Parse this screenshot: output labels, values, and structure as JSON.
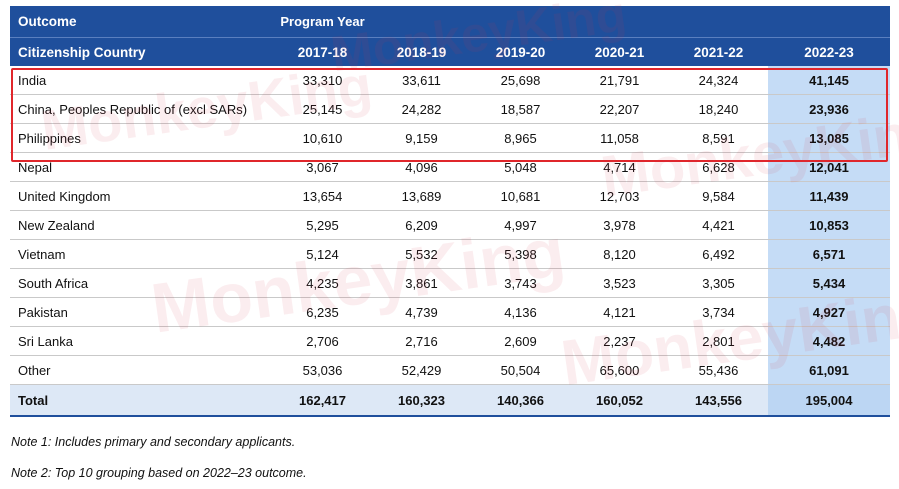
{
  "header": {
    "row1": {
      "outcome": "Outcome",
      "program_year": "Program Year"
    },
    "row2": {
      "citizenship": "Citizenship Country",
      "years": [
        "2017-18",
        "2018-19",
        "2019-20",
        "2020-21",
        "2021-22",
        "2022-23"
      ]
    }
  },
  "rows": [
    {
      "country": "India",
      "values": [
        "33,310",
        "33,611",
        "25,698",
        "21,791",
        "24,324",
        "41,145"
      ]
    },
    {
      "country": "China, Peoples Republic of (excl SARs)",
      "values": [
        "25,145",
        "24,282",
        "18,587",
        "22,207",
        "18,240",
        "23,936"
      ]
    },
    {
      "country": "Philippines",
      "values": [
        "10,610",
        "9,159",
        "8,965",
        "11,058",
        "8,591",
        "13,085"
      ]
    },
    {
      "country": "Nepal",
      "values": [
        "3,067",
        "4,096",
        "5,048",
        "4,714",
        "6,628",
        "12,041"
      ]
    },
    {
      "country": "United Kingdom",
      "values": [
        "13,654",
        "13,689",
        "10,681",
        "12,703",
        "9,584",
        "11,439"
      ]
    },
    {
      "country": "New Zealand",
      "values": [
        "5,295",
        "6,209",
        "4,997",
        "3,978",
        "4,421",
        "10,853"
      ]
    },
    {
      "country": "Vietnam",
      "values": [
        "5,124",
        "5,532",
        "5,398",
        "8,120",
        "6,492",
        "6,571"
      ]
    },
    {
      "country": "South Africa",
      "values": [
        "4,235",
        "3,861",
        "3,743",
        "3,523",
        "3,305",
        "5,434"
      ]
    },
    {
      "country": "Pakistan",
      "values": [
        "6,235",
        "4,739",
        "4,136",
        "4,121",
        "3,734",
        "4,927"
      ]
    },
    {
      "country": "Sri Lanka",
      "values": [
        "2,706",
        "2,716",
        "2,609",
        "2,237",
        "2,801",
        "4,482"
      ]
    },
    {
      "country": "Other",
      "values": [
        "53,036",
        "52,429",
        "50,504",
        "65,600",
        "55,436",
        "61,091"
      ]
    }
  ],
  "total": {
    "label": "Total",
    "values": [
      "162,417",
      "160,323",
      "140,366",
      "160,052",
      "143,556",
      "195,004"
    ]
  },
  "notes": [
    "Note 1: Includes primary and secondary applicants.",
    "Note 2: Top 10 grouping based on 2022–23 outcome."
  ],
  "watermark": {
    "text": "MonkeyKing"
  },
  "colors": {
    "header_bg": "#1f4f9c",
    "highlight_col": "#c5dcf6",
    "total_bg": "#dde8f6",
    "red_box": "#e0262b"
  }
}
